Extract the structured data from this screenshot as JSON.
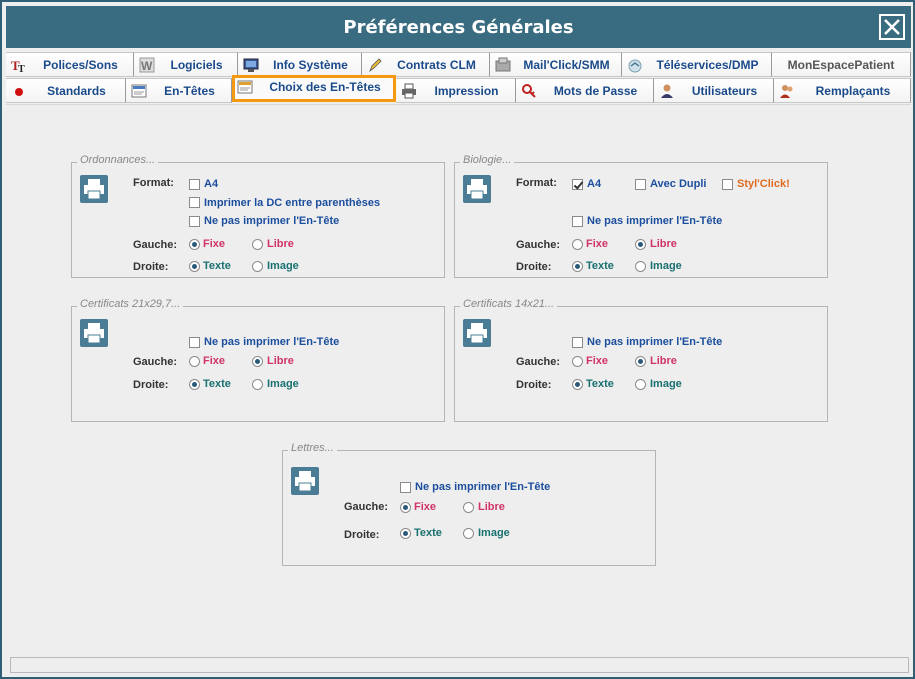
{
  "window": {
    "title": "Préférences Générales"
  },
  "tabs_row1": [
    {
      "label": "Polices/Sons",
      "icon": "font-icon"
    },
    {
      "label": "Logiciels",
      "icon": "software-icon"
    },
    {
      "label": "Info Système",
      "icon": "system-info-icon"
    },
    {
      "label": "Contrats CLM",
      "icon": "pencil-icon"
    },
    {
      "label": "Mail'Click/SMM",
      "icon": "mail-icon"
    },
    {
      "label": "Téléservices/DMP",
      "icon": "teleservice-icon"
    },
    {
      "label": "MonEspacePatient",
      "icon": ""
    }
  ],
  "tabs_row2": [
    {
      "label": "Standards",
      "icon": "red-dot-icon"
    },
    {
      "label": "En-Têtes",
      "icon": "header-icon"
    },
    {
      "label": "Choix des En-Têtes",
      "icon": "header-choice-icon"
    },
    {
      "label": "Impression",
      "icon": "printer-icon"
    },
    {
      "label": "Mots de Passe",
      "icon": "key-icon"
    },
    {
      "label": "Utilisateurs",
      "icon": "user-icon"
    },
    {
      "label": "Remplaçants",
      "icon": "replacement-icon"
    }
  ],
  "active_tab": "Choix des En-Têtes",
  "labels": {
    "format": "Format:",
    "gauche": "Gauche:",
    "droite": "Droite:"
  },
  "options": {
    "a4": "A4",
    "dc_parentheses": "Imprimer la DC entre parenthèses",
    "no_header": "Ne pas imprimer l'En-Tête",
    "fixe": "Fixe",
    "libre": "Libre",
    "texte": "Texte",
    "image": "Image",
    "avec_dupli": "Avec Dupli",
    "styl_click": "Styl'Click!"
  },
  "groups": {
    "ordonnances": {
      "legend": "Ordonnances...",
      "a4": false,
      "dc_parentheses": false,
      "no_header": false,
      "gauche": "Fixe",
      "droite": "Texte"
    },
    "biologie": {
      "legend": "Biologie...",
      "a4": true,
      "avec_dupli": false,
      "styl_click": false,
      "no_header": false,
      "gauche": "Libre",
      "droite": "Texte"
    },
    "certificats_21": {
      "legend": "Certificats 21x29,7...",
      "no_header": false,
      "gauche": "Libre",
      "droite": "Texte"
    },
    "certificats_14": {
      "legend": "Certificats 14x21...",
      "no_header": false,
      "gauche": "Libre",
      "droite": "Texte"
    },
    "lettres": {
      "legend": "Lettres...",
      "no_header": false,
      "gauche": "Fixe",
      "droite": "Texte"
    }
  }
}
